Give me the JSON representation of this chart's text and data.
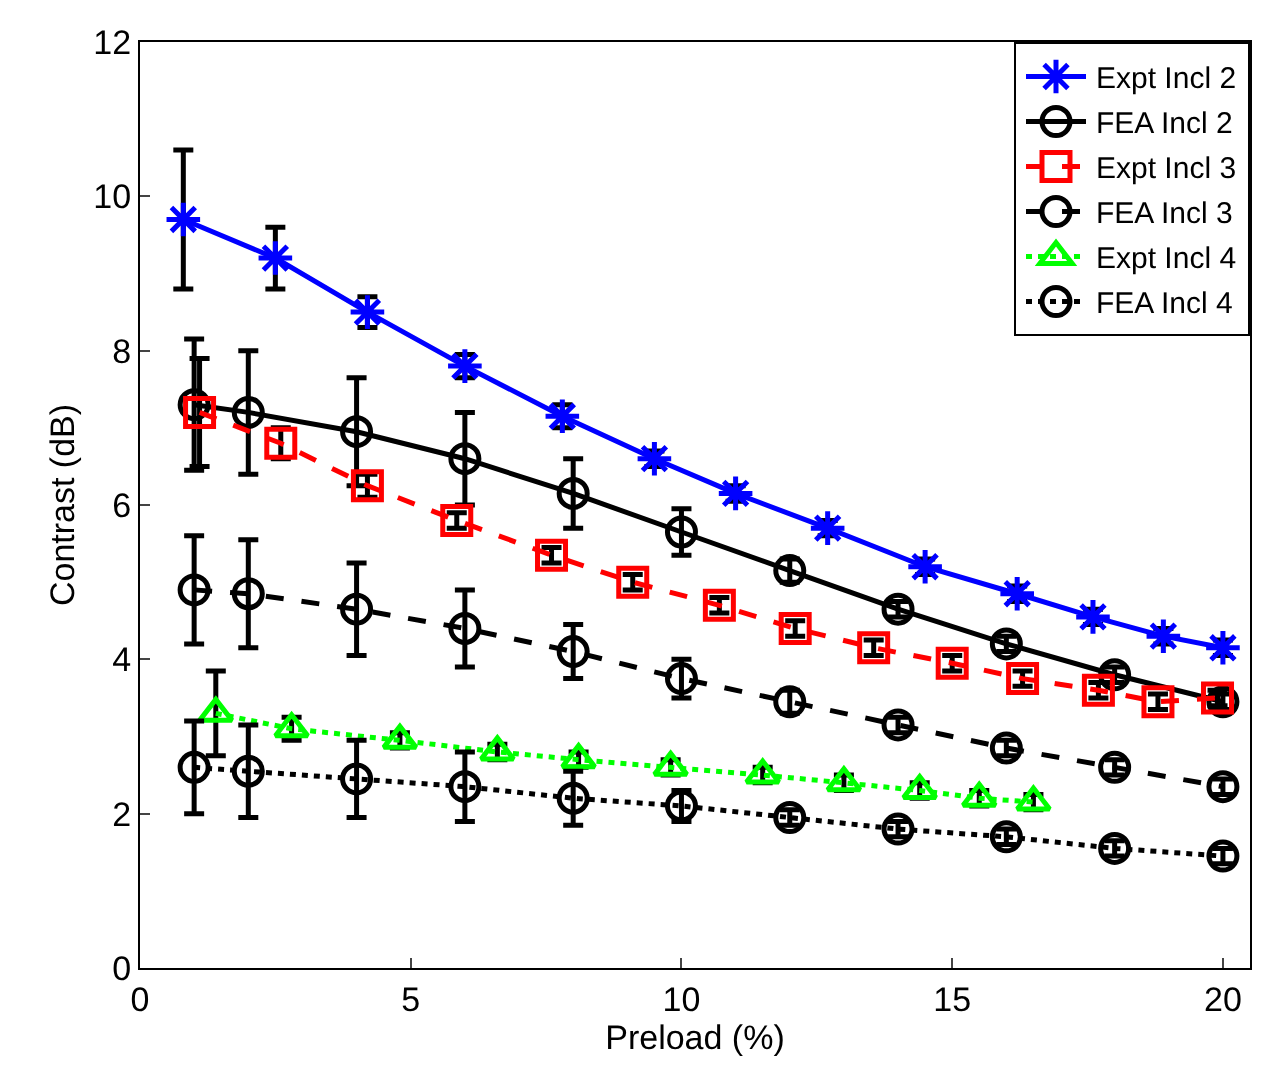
{
  "chart_data": {
    "type": "line",
    "xlabel": "Preload (%)",
    "ylabel": "Contrast (dB)",
    "xlim": [
      0,
      20.5
    ],
    "ylim": [
      0,
      12
    ],
    "xticks": [
      0,
      5,
      10,
      15,
      20
    ],
    "yticks": [
      0,
      2,
      4,
      6,
      8,
      10,
      12
    ],
    "legend": "top right",
    "series": [
      {
        "name": "Expt Incl 2",
        "color": "#0000ff",
        "marker": "cross",
        "line_style": "solid",
        "x": [
          0.8,
          2.5,
          4.2,
          6,
          7.8,
          9.5,
          11,
          12.7,
          14.5,
          16.2,
          17.6,
          18.9,
          20
        ],
        "values": [
          9.7,
          9.2,
          8.5,
          7.8,
          7.15,
          6.6,
          6.15,
          5.7,
          5.2,
          4.85,
          4.55,
          4.3,
          4.15
        ],
        "errors": [
          0.9,
          0.4,
          0.2,
          0.15,
          0.15,
          0.1,
          0.1,
          0.1,
          0.1,
          0.1,
          0.1,
          0.1,
          0.1
        ]
      },
      {
        "name": "FEA Incl 2",
        "color": "#000000",
        "marker": "circle",
        "line_style": "solid",
        "x": [
          1,
          2,
          4,
          6,
          8,
          10,
          12,
          14,
          16,
          18,
          20
        ],
        "values": [
          7.3,
          7.2,
          6.95,
          6.6,
          6.15,
          5.65,
          5.15,
          4.65,
          4.2,
          3.8,
          3.45
        ],
        "errors": [
          0.85,
          0.8,
          0.7,
          0.6,
          0.45,
          0.3,
          0.15,
          0.1,
          0.1,
          0.1,
          0.1
        ]
      },
      {
        "name": "Expt Incl 3",
        "color": "#ff0000",
        "marker": "square",
        "line_style": "dashed",
        "x": [
          1.1,
          2.6,
          4.2,
          5.85,
          7.6,
          9.1,
          10.7,
          12.1,
          13.55,
          15,
          16.3,
          17.7,
          18.8,
          19.9
        ],
        "values": [
          7.2,
          6.8,
          6.25,
          5.8,
          5.35,
          5,
          4.7,
          4.4,
          4.15,
          3.95,
          3.75,
          3.6,
          3.45,
          3.5
        ],
        "errors": [
          0.7,
          0.2,
          0.15,
          0.1,
          0.1,
          0.1,
          0.1,
          0.1,
          0.1,
          0.1,
          0.1,
          0.1,
          0.1,
          0.1
        ]
      },
      {
        "name": "FEA Incl 3",
        "color": "#000000",
        "marker": "circle",
        "line_style": "dashed",
        "x": [
          1,
          2,
          4,
          6,
          8,
          10,
          12,
          14,
          16,
          18,
          20
        ],
        "values": [
          4.9,
          4.85,
          4.65,
          4.4,
          4.1,
          3.75,
          3.45,
          3.15,
          2.85,
          2.6,
          2.35
        ],
        "errors": [
          0.7,
          0.7,
          0.6,
          0.5,
          0.35,
          0.25,
          0.15,
          0.1,
          0.1,
          0.1,
          0.1
        ]
      },
      {
        "name": "Expt Incl 4",
        "color": "#00ff00",
        "marker": "triangle",
        "line_style": "dotted",
        "x": [
          1.4,
          2.8,
          4.8,
          6.6,
          8.1,
          9.8,
          11.5,
          13,
          14.4,
          15.5,
          16.5
        ],
        "values": [
          3.3,
          3.1,
          2.95,
          2.8,
          2.7,
          2.6,
          2.5,
          2.4,
          2.3,
          2.2,
          2.15
        ],
        "errors": [
          0.55,
          0.15,
          0.1,
          0.1,
          0.1,
          0.1,
          0.1,
          0.1,
          0.1,
          0.1,
          0.1
        ]
      },
      {
        "name": "FEA Incl 4",
        "color": "#000000",
        "marker": "circle",
        "line_style": "dotted",
        "x": [
          1,
          2,
          4,
          6,
          8,
          10,
          12,
          14,
          16,
          18,
          20
        ],
        "values": [
          2.6,
          2.55,
          2.45,
          2.35,
          2.2,
          2.1,
          1.95,
          1.8,
          1.7,
          1.55,
          1.45
        ],
        "errors": [
          0.6,
          0.6,
          0.5,
          0.45,
          0.35,
          0.2,
          0.1,
          0.1,
          0.1,
          0.1,
          0.1
        ]
      }
    ]
  }
}
